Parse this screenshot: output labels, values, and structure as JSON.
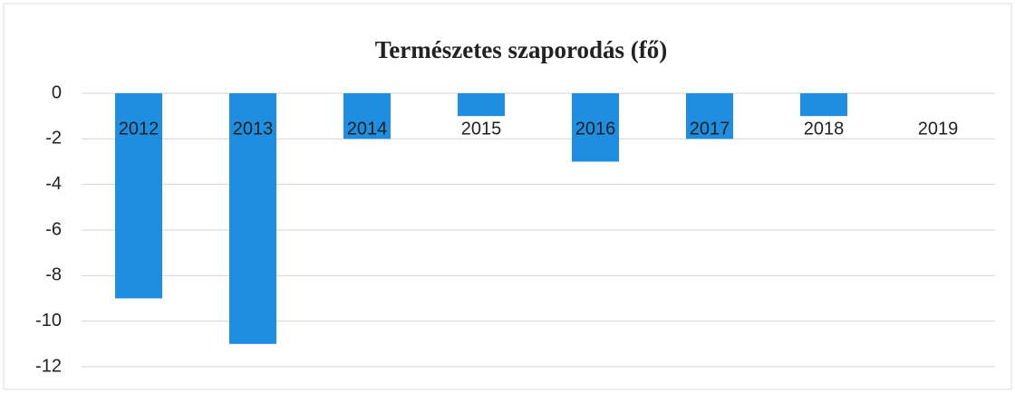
{
  "chart_data": {
    "type": "bar",
    "title": "Természetes szaporodás (fő)",
    "categories": [
      "2012",
      "2013",
      "2014",
      "2015",
      "2016",
      "2017",
      "2018",
      "2019"
    ],
    "values": [
      -9,
      -11,
      -2,
      -1,
      -3,
      -2,
      -1,
      0
    ],
    "color": "#1f8ee0",
    "ylim": [
      -12,
      0
    ],
    "yticks": [
      0,
      -2,
      -4,
      -6,
      -8,
      -10,
      -12
    ],
    "grid": true
  }
}
